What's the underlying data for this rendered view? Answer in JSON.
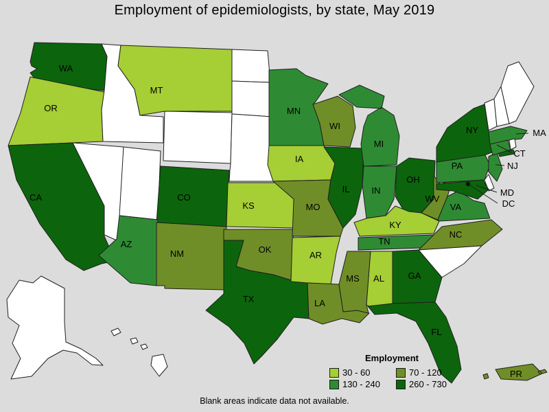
{
  "title": "Employment of epidemiologists, by state, May 2019",
  "footnote": "Blank areas indicate data not available.",
  "legend": {
    "title": "Employment",
    "items": [
      {
        "range": "30 - 60",
        "color": "#a6ce35"
      },
      {
        "range": "70 - 120",
        "color": "#708e27"
      },
      {
        "range": "130 - 240",
        "color": "#2f8b33"
      },
      {
        "range": "260 - 730",
        "color": "#0c650c"
      }
    ],
    "no_data_color": "#ffffff"
  },
  "colors": {
    "background": "#dcdcdc",
    "border": "#1f1f1f",
    "label_text": "#000000",
    "dc_marker": "#111111"
  },
  "chart_data": {
    "type": "choropleth",
    "title": "Employment of epidemiologists, by state, May 2019",
    "value_name": "Employment",
    "classes": [
      "30 - 60",
      "70 - 120",
      "130 - 240",
      "260 - 730"
    ],
    "no_data_note": "Blank areas indicate data not available.",
    "states": [
      {
        "code": "AK",
        "label": "",
        "class": "no data"
      },
      {
        "code": "HI",
        "label": "",
        "class": "no data"
      },
      {
        "code": "WA",
        "label": "WA",
        "class": "260 - 730"
      },
      {
        "code": "OR",
        "label": "OR",
        "class": "30 - 60"
      },
      {
        "code": "CA",
        "label": "CA",
        "class": "260 - 730"
      },
      {
        "code": "NV",
        "label": "",
        "class": "no data"
      },
      {
        "code": "ID",
        "label": "",
        "class": "no data"
      },
      {
        "code": "MT",
        "label": "MT",
        "class": "30 - 60"
      },
      {
        "code": "WY",
        "label": "",
        "class": "no data"
      },
      {
        "code": "UT",
        "label": "",
        "class": "no data"
      },
      {
        "code": "CO",
        "label": "CO",
        "class": "260 - 730"
      },
      {
        "code": "AZ",
        "label": "AZ",
        "class": "130 - 240"
      },
      {
        "code": "NM",
        "label": "NM",
        "class": "70 - 120"
      },
      {
        "code": "ND",
        "label": "",
        "class": "no data"
      },
      {
        "code": "SD",
        "label": "",
        "class": "no data"
      },
      {
        "code": "NE",
        "label": "",
        "class": "no data"
      },
      {
        "code": "KS",
        "label": "KS",
        "class": "30 - 60"
      },
      {
        "code": "OK",
        "label": "OK",
        "class": "70 - 120"
      },
      {
        "code": "TX",
        "label": "TX",
        "class": "260 - 730"
      },
      {
        "code": "MN",
        "label": "MN",
        "class": "130 - 240"
      },
      {
        "code": "IA",
        "label": "IA",
        "class": "30 - 60"
      },
      {
        "code": "MO",
        "label": "MO",
        "class": "70 - 120"
      },
      {
        "code": "AR",
        "label": "AR",
        "class": "30 - 60"
      },
      {
        "code": "LA",
        "label": "LA",
        "class": "70 - 120"
      },
      {
        "code": "WI",
        "label": "WI",
        "class": "70 - 120"
      },
      {
        "code": "IL",
        "label": "IL",
        "class": "260 - 730"
      },
      {
        "code": "MI",
        "label": "MI",
        "class": "130 - 240"
      },
      {
        "code": "IN",
        "label": "IN",
        "class": "130 - 240"
      },
      {
        "code": "OH",
        "label": "OH",
        "class": "260 - 730"
      },
      {
        "code": "KY",
        "label": "KY",
        "class": "30 - 60"
      },
      {
        "code": "TN",
        "label": "TN",
        "class": "130 - 240"
      },
      {
        "code": "MS",
        "label": "MS",
        "class": "70 - 120"
      },
      {
        "code": "AL",
        "label": "AL",
        "class": "30 - 60"
      },
      {
        "code": "GA",
        "label": "GA",
        "class": "260 - 730"
      },
      {
        "code": "FL",
        "label": "FL",
        "class": "260 - 730"
      },
      {
        "code": "WV",
        "label": "WV",
        "class": "70 - 120"
      },
      {
        "code": "VA",
        "label": "VA",
        "class": "130 - 240"
      },
      {
        "code": "NC",
        "label": "NC",
        "class": "70 - 120"
      },
      {
        "code": "SC",
        "label": "",
        "class": "no data"
      },
      {
        "code": "PA",
        "label": "PA",
        "class": "130 - 240"
      },
      {
        "code": "NY",
        "label": "NY",
        "class": "260 - 730"
      },
      {
        "code": "NJ",
        "label": "NJ",
        "class": "130 - 240"
      },
      {
        "code": "DE",
        "label": "",
        "class": "no data"
      },
      {
        "code": "MD",
        "label": "MD",
        "class": "260 - 730"
      },
      {
        "code": "VT",
        "label": "",
        "class": "no data"
      },
      {
        "code": "NH",
        "label": "",
        "class": "no data"
      },
      {
        "code": "ME",
        "label": "",
        "class": "no data"
      },
      {
        "code": "MA",
        "label": "MA",
        "class": "130 - 240"
      },
      {
        "code": "RI",
        "label": "",
        "class": "no data"
      },
      {
        "code": "CT",
        "label": "CT",
        "class": "130 - 240"
      },
      {
        "code": "DC",
        "label": "DC",
        "class": "marker"
      },
      {
        "code": "PR",
        "label": "PR",
        "class": "70 - 120"
      }
    ]
  }
}
